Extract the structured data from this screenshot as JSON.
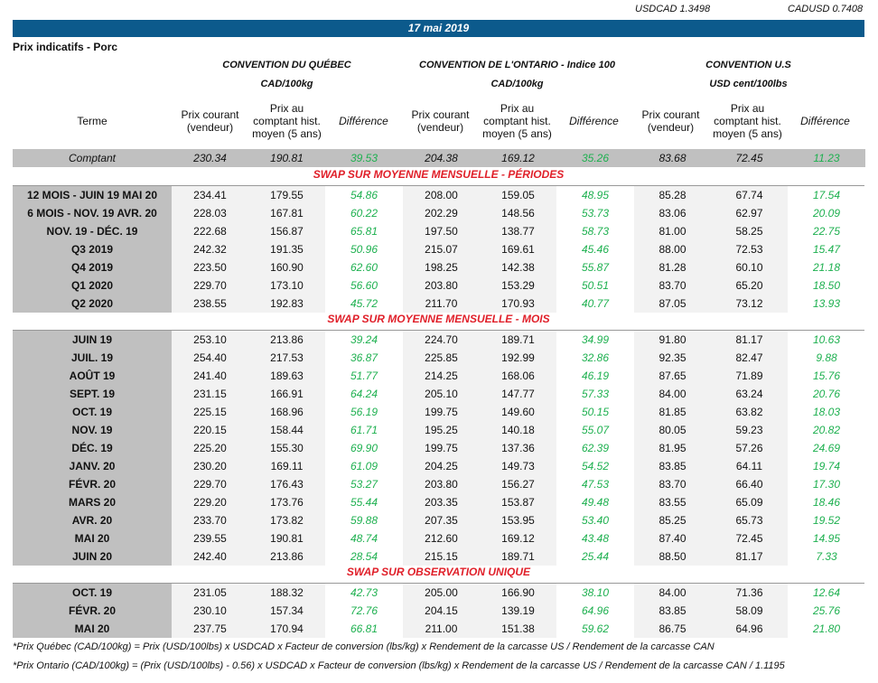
{
  "rates": {
    "usdcad": "USDCAD 1.3498",
    "cadusd": "CADUSD 0.7408"
  },
  "banner": "17 mai 2019",
  "subtitle": "Prix indicatifs - Porc",
  "groups": [
    {
      "name": "CONVENTION DU QUÉBEC",
      "unit": "CAD/100kg"
    },
    {
      "name": "CONVENTION DE L'ONTARIO - Indice 100",
      "unit": "CAD/100kg"
    },
    {
      "name": "CONVENTION U.S",
      "unit": "USD cent/100lbs"
    }
  ],
  "headers": {
    "terme": "Terme",
    "prix_courant": "Prix courant (vendeur)",
    "prix_hist": "Prix au comptant hist. moyen (5 ans)",
    "difference": "Différence"
  },
  "colors": {
    "banner": "#0c5a8c",
    "positive": "#1db04f",
    "section": "#e0202a",
    "label_bg": "#c0c0c0"
  },
  "comptant": [
    "Comptant",
    "230.34",
    "190.81",
    "39.53",
    "204.38",
    "169.12",
    "35.26",
    "83.68",
    "72.45",
    "11.23"
  ],
  "sections": [
    {
      "title": "SWAP SUR MOYENNE MENSUELLE - PÉRIODES",
      "rows": [
        [
          "12 MOIS -  JUIN 19 MAI 20",
          "234.41",
          "179.55",
          "54.86",
          "208.00",
          "159.05",
          "48.95",
          "85.28",
          "67.74",
          "17.54"
        ],
        [
          "6 MOIS -  NOV. 19 AVR. 20",
          "228.03",
          "167.81",
          "60.22",
          "202.29",
          "148.56",
          "53.73",
          "83.06",
          "62.97",
          "20.09"
        ],
        [
          "NOV. 19 -  DÉC. 19",
          "222.68",
          "156.87",
          "65.81",
          "197.50",
          "138.77",
          "58.73",
          "81.00",
          "58.25",
          "22.75"
        ],
        [
          "Q3 2019",
          "242.32",
          "191.35",
          "50.96",
          "215.07",
          "169.61",
          "45.46",
          "88.00",
          "72.53",
          "15.47"
        ],
        [
          "Q4 2019",
          "223.50",
          "160.90",
          "62.60",
          "198.25",
          "142.38",
          "55.87",
          "81.28",
          "60.10",
          "21.18"
        ],
        [
          "Q1 2020",
          "229.70",
          "173.10",
          "56.60",
          "203.80",
          "153.29",
          "50.51",
          "83.70",
          "65.20",
          "18.50"
        ],
        [
          "Q2 2020",
          "238.55",
          "192.83",
          "45.72",
          "211.70",
          "170.93",
          "40.77",
          "87.05",
          "73.12",
          "13.93"
        ]
      ]
    },
    {
      "title": "SWAP SUR MOYENNE MENSUELLE - MOIS",
      "rows": [
        [
          "JUIN 19",
          "253.10",
          "213.86",
          "39.24",
          "224.70",
          "189.71",
          "34.99",
          "91.80",
          "81.17",
          "10.63"
        ],
        [
          "JUIL. 19",
          "254.40",
          "217.53",
          "36.87",
          "225.85",
          "192.99",
          "32.86",
          "92.35",
          "82.47",
          "9.88"
        ],
        [
          "AOÛT 19",
          "241.40",
          "189.63",
          "51.77",
          "214.25",
          "168.06",
          "46.19",
          "87.65",
          "71.89",
          "15.76"
        ],
        [
          "SEPT. 19",
          "231.15",
          "166.91",
          "64.24",
          "205.10",
          "147.77",
          "57.33",
          "84.00",
          "63.24",
          "20.76"
        ],
        [
          "OCT. 19",
          "225.15",
          "168.96",
          "56.19",
          "199.75",
          "149.60",
          "50.15",
          "81.85",
          "63.82",
          "18.03"
        ],
        [
          "NOV. 19",
          "220.15",
          "158.44",
          "61.71",
          "195.25",
          "140.18",
          "55.07",
          "80.05",
          "59.23",
          "20.82"
        ],
        [
          "DÉC. 19",
          "225.20",
          "155.30",
          "69.90",
          "199.75",
          "137.36",
          "62.39",
          "81.95",
          "57.26",
          "24.69"
        ],
        [
          "JANV. 20",
          "230.20",
          "169.11",
          "61.09",
          "204.25",
          "149.73",
          "54.52",
          "83.85",
          "64.11",
          "19.74"
        ],
        [
          "FÉVR. 20",
          "229.70",
          "176.43",
          "53.27",
          "203.80",
          "156.27",
          "47.53",
          "83.70",
          "66.40",
          "17.30"
        ],
        [
          "MARS 20",
          "229.20",
          "173.76",
          "55.44",
          "203.35",
          "153.87",
          "49.48",
          "83.55",
          "65.09",
          "18.46"
        ],
        [
          "AVR. 20",
          "233.70",
          "173.82",
          "59.88",
          "207.35",
          "153.95",
          "53.40",
          "85.25",
          "65.73",
          "19.52"
        ],
        [
          "MAI 20",
          "239.55",
          "190.81",
          "48.74",
          "212.60",
          "169.12",
          "43.48",
          "87.40",
          "72.45",
          "14.95"
        ],
        [
          "JUIN 20",
          "242.40",
          "213.86",
          "28.54",
          "215.15",
          "189.71",
          "25.44",
          "88.50",
          "81.17",
          "7.33"
        ]
      ]
    },
    {
      "title": "SWAP SUR OBSERVATION UNIQUE",
      "rows": [
        [
          "OCT. 19",
          "231.05",
          "188.32",
          "42.73",
          "205.00",
          "166.90",
          "38.10",
          "84.00",
          "71.36",
          "12.64"
        ],
        [
          "FÉVR. 20",
          "230.10",
          "157.34",
          "72.76",
          "204.15",
          "139.19",
          "64.96",
          "83.85",
          "58.09",
          "25.76"
        ],
        [
          "MAI 20",
          "237.75",
          "170.94",
          "66.81",
          "211.00",
          "151.38",
          "59.62",
          "86.75",
          "64.96",
          "21.80"
        ]
      ]
    }
  ],
  "notes": [
    "*Prix Québec (CAD/100kg) = Prix (USD/100lbs) x USDCAD x Facteur de conversion (lbs/kg) x Rendement de la carcasse US / Rendement de la carcasse CAN",
    "*Prix Ontario (CAD/100kg) = (Prix (USD/100lbs) - 0.56) x USDCAD x Facteur de conversion (lbs/kg) x Rendement de la carcasse US / Rendement de la carcasse CAN / 1.1195"
  ]
}
